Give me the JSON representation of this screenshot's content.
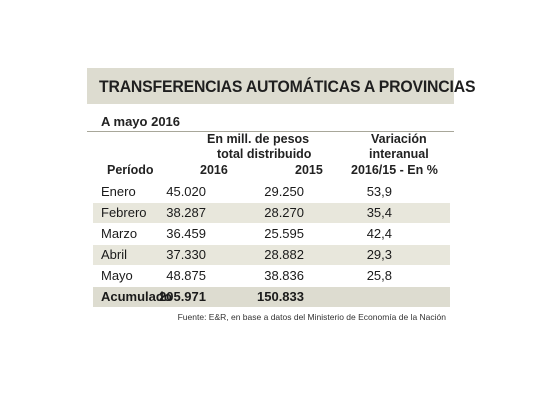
{
  "title": "TRANSFERENCIAS AUTOMÁTICAS A PROVINCIAS",
  "date_label": "A mayo 2016",
  "header": {
    "periodo": "Período",
    "group_line1": "En mill. de pesos",
    "group_line2": "total distribuido",
    "year_2016": "2016",
    "year_2015": "2015",
    "var_line1": "Variación",
    "var_line2": "interanual",
    "var_line3": "2016/15 - En %"
  },
  "rows": [
    {
      "periodo": "Enero",
      "v2016": "45.020",
      "v2015": "29.250",
      "var": "53,9"
    },
    {
      "periodo": "Febrero",
      "v2016": "38.287",
      "v2015": "28.270",
      "var": "35,4"
    },
    {
      "periodo": "Marzo",
      "v2016": "36.459",
      "v2015": "25.595",
      "var": "42,4"
    },
    {
      "periodo": "Abril",
      "v2016": "37.330",
      "v2015": "28.882",
      "var": "29,3"
    },
    {
      "periodo": "Mayo",
      "v2016": "48.875",
      "v2015": "38.836",
      "var": "25,8"
    }
  ],
  "total": {
    "periodo": "Acumulado",
    "v2016": "205.971",
    "v2015": "150.833",
    "var": ""
  },
  "source": "Fuente: E&R, en base a datos del Ministerio de Economía de la Nación",
  "colors": {
    "band": "#dddcd0",
    "shaded_row": "#e8e7dc"
  }
}
